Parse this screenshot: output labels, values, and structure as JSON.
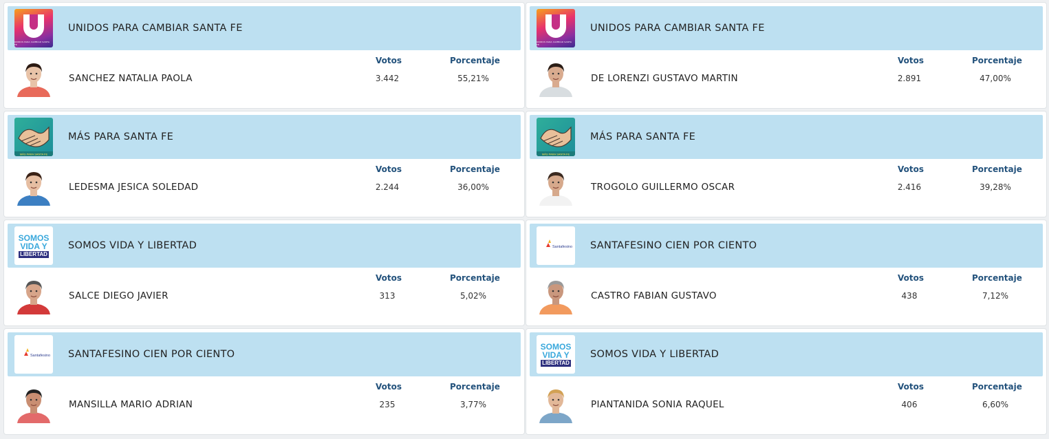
{
  "labels": {
    "votos": "Votos",
    "porcentaje": "Porcentaje"
  },
  "left": [
    {
      "party": "UNIDOS PARA CAMBIAR SANTA FE",
      "logo": "unidos-logo",
      "logo_caption": "UNIDOS PARA CAMBIAR SANTA FE",
      "candidate": "SANCHEZ NATALIA PAOLA",
      "votos": "3.442",
      "porcentaje": "55,21%",
      "skin": "#e8c3a8",
      "hair": "#2b1a12",
      "shirt": "#e86a5a"
    },
    {
      "party": "MÁS PARA SANTA FE",
      "logo": "handshake-logo",
      "logo_caption": "MÁS PARA SANTA FE",
      "candidate": "LEDESMA JESICA SOLEDAD",
      "votos": "2.244",
      "porcentaje": "36,00%",
      "skin": "#e6bea2",
      "hair": "#3a2216",
      "shirt": "#3c7fc2"
    },
    {
      "party": "SOMOS VIDA Y LIBERTAD",
      "logo": "somos-vida-logo",
      "logo_caption": "",
      "logo_l1": "SOMOS",
      "logo_l2": "VIDA Y",
      "logo_l3": "LIBERTAD",
      "candidate": "SALCE DIEGO JAVIER",
      "votos": "313",
      "porcentaje": "5,02%",
      "skin": "#d7a58a",
      "hair": "#555555",
      "shirt": "#d33a3a"
    },
    {
      "party": "SANTAFESINO CIEN POR CIENTO",
      "logo": "santafesino-logo",
      "logo_caption": "Santafesino",
      "candidate": "MANSILLA MARIO ADRIAN",
      "votos": "235",
      "porcentaje": "3,77%",
      "skin": "#c98e72",
      "hair": "#222222",
      "shirt": "#e36a6a"
    }
  ],
  "right": [
    {
      "party": "UNIDOS PARA CAMBIAR SANTA FE",
      "logo": "unidos-logo",
      "logo_caption": "UNIDOS PARA CAMBIAR SANTA FE",
      "candidate": "DE LORENZI GUSTAVO MARTIN",
      "votos": "2.891",
      "porcentaje": "47,00%",
      "skin": "#d9ab8f",
      "hair": "#2a1d16",
      "shirt": "#d8dde0"
    },
    {
      "party": "MÁS PARA SANTA FE",
      "logo": "handshake-logo",
      "logo_caption": "MÁS PARA SANTA FE",
      "candidate": "TROGOLO GUILLERMO OSCAR",
      "votos": "2.416",
      "porcentaje": "39,28%",
      "skin": "#d6a98c",
      "hair": "#3b2a20",
      "shirt": "#f2f2f2"
    },
    {
      "party": "SANTAFESINO CIEN POR CIENTO",
      "logo": "santafesino-logo",
      "logo_caption": "Santafesino",
      "candidate": "CASTRO FABIAN GUSTAVO",
      "votos": "438",
      "porcentaje": "7,12%",
      "skin": "#c9977d",
      "hair": "#9a9a9a",
      "shirt": "#f29a5e"
    },
    {
      "party": "SOMOS VIDA Y LIBERTAD",
      "logo": "somos-vida-logo",
      "logo_caption": "",
      "logo_l1": "SOMOS",
      "logo_l2": "VIDA Y",
      "logo_l3": "LIBERTAD",
      "candidate": "PIANTANIDA SONIA RAQUEL",
      "votos": "406",
      "porcentaje": "6,60%",
      "skin": "#e2b898",
      "hair": "#d2a154",
      "shirt": "#7da6c8"
    }
  ]
}
